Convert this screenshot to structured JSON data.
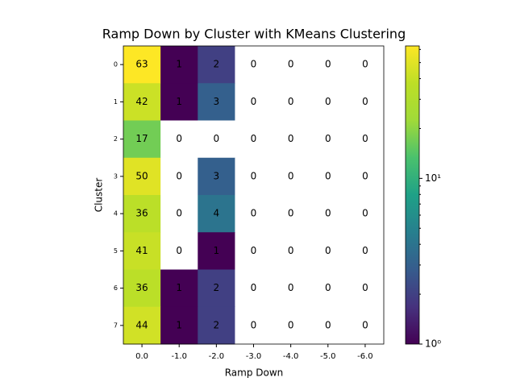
{
  "chart_data": {
    "type": "heatmap",
    "title": "Ramp Down by Cluster with KMeans Clustering",
    "x_label": "Ramp Down",
    "y_label": "Cluster",
    "x_categories": [
      "0.0",
      "-1.0",
      "-2.0",
      "-3.0",
      "-4.0",
      "-5.0",
      "-6.0"
    ],
    "y_categories": [
      "0",
      "1",
      "2",
      "3",
      "4",
      "5",
      "6",
      "7"
    ],
    "values": [
      [
        63,
        1,
        2,
        0,
        0,
        0,
        0
      ],
      [
        42,
        1,
        3,
        0,
        0,
        0,
        0
      ],
      [
        17,
        0,
        0,
        0,
        0,
        0,
        0
      ],
      [
        50,
        0,
        3,
        0,
        0,
        0,
        0
      ],
      [
        36,
        0,
        4,
        0,
        0,
        0,
        0
      ],
      [
        41,
        0,
        1,
        0,
        0,
        0,
        0
      ],
      [
        36,
        1,
        2,
        0,
        0,
        0,
        0
      ],
      [
        44,
        1,
        2,
        0,
        0,
        0,
        0
      ]
    ],
    "colormap": "viridis",
    "color_scale": "log",
    "clim": [
      1,
      63
    ],
    "cticks": [
      {
        "value": 1,
        "label": "10⁰"
      },
      {
        "value": 10,
        "label": "10¹"
      }
    ],
    "cticks_minor": [
      2,
      3,
      4,
      5,
      6,
      7,
      8,
      9,
      20,
      30,
      40,
      50,
      60
    ]
  }
}
